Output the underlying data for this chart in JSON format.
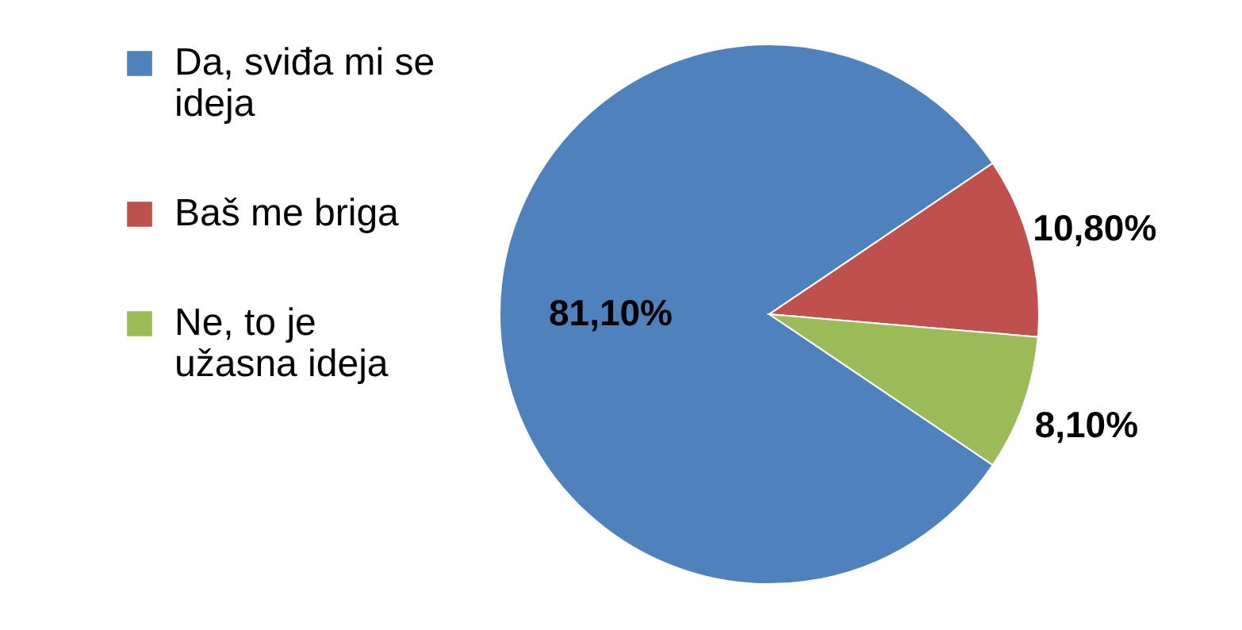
{
  "chart_data": {
    "type": "pie",
    "categories": [
      "Da, sviđa mi se ideja",
      "Baš me briga",
      "Ne, to je užasna ideja"
    ],
    "values": [
      81.1,
      10.8,
      8.1
    ],
    "colors": [
      "#4f81bd",
      "#c0504d",
      "#9bbb59"
    ],
    "value_labels": [
      "81,10%",
      "10,80%",
      "8,10%"
    ],
    "legend": "left"
  }
}
